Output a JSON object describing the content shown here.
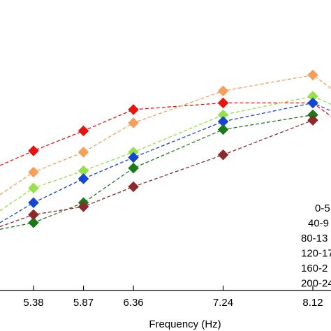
{
  "chart_data": {
    "type": "line",
    "xlabel": "Frequency (Hz)",
    "ylabel": "",
    "title": "",
    "grid": false,
    "legend_position": "right",
    "x_ticks": [
      {
        "value": 5.38,
        "label": "5.38"
      },
      {
        "value": 5.87,
        "label": "5.87"
      },
      {
        "value": 6.36,
        "label": "6.36"
      },
      {
        "value": 7.24,
        "label": "7.24"
      },
      {
        "value": 8.12,
        "label": "8.12"
      }
    ],
    "xlim": [
      5.0,
      8.25
    ],
    "ylim": [
      0,
      10
    ],
    "x": [
      5.38,
      5.87,
      6.36,
      7.24,
      8.12
    ],
    "series": [
      {
        "name": "0-5",
        "color": "#e8130f",
        "marker": "diamond",
        "line": "dashed",
        "values": [
          5.25,
          6.0,
          6.8,
          7.05,
          7.05
        ]
      },
      {
        "name": "40-9",
        "color": "#f5a05a",
        "marker": "diamond",
        "line": "dashed",
        "values": [
          4.45,
          5.2,
          6.3,
          7.5,
          8.1
        ]
      },
      {
        "name": "80-13",
        "color": "#96e04a",
        "marker": "diamond",
        "line": "dashed",
        "values": [
          3.85,
          4.5,
          5.2,
          6.6,
          7.3
        ]
      },
      {
        "name": "120-17",
        "color": "#1446d6",
        "marker": "diamond",
        "line": "dashed",
        "values": [
          3.3,
          4.2,
          5.0,
          6.35,
          7.05
        ]
      },
      {
        "name": "160-2",
        "color": "#1a7a1a",
        "marker": "diamond",
        "line": "dashed",
        "values": [
          2.55,
          3.3,
          4.6,
          6.05,
          6.6
        ]
      },
      {
        "name": "200-24",
        "color": "#8b2a2a",
        "marker": "diamond",
        "line": "dashed",
        "values": [
          2.85,
          3.15,
          3.9,
          5.1,
          6.4
        ]
      }
    ],
    "partial_left_points": [
      {
        "series": "0-5",
        "value": 4.7
      },
      {
        "series": "40-9",
        "value": 3.6
      },
      {
        "series": "80-13",
        "value": 3.0
      },
      {
        "series": "120-17",
        "value": 2.55
      },
      {
        "series": "160-2",
        "value": 2.3
      },
      {
        "series": "200-24",
        "value": 2.4
      }
    ],
    "partial_right_points": [
      {
        "series": "0-5",
        "value": 6.55
      },
      {
        "series": "40-9",
        "value": 7.6
      },
      {
        "series": "80-13",
        "value": 7.0
      },
      {
        "series": "120-17",
        "value": 6.75
      }
    ]
  }
}
